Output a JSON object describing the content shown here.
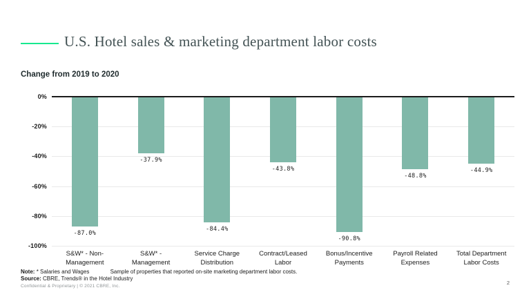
{
  "page": {
    "title": "U.S. Hotel sales & marketing department labor costs",
    "subtitle": "Change from 2019 to 2020",
    "note_label": "Note:",
    "note_text_1": "* Salaries and Wages",
    "note_text_2": "Sample of properties that reported on-site marketing department labor costs.",
    "source_label": "Source:",
    "source_text": "CBRE, Trends® in the Hotel Industry",
    "footer": "Confidential & Proprietary | © 2021 CBRE, Inc.",
    "page_number": "2"
  },
  "colors": {
    "bar": "#80b8a9",
    "accent_line": "#17e88f",
    "title_text": "#435254",
    "grid_line": "#e9e9e9",
    "zero_line": "#1a1a1a"
  },
  "chart_data": {
    "type": "bar",
    "title": "Change from 2019 to 2020",
    "categories": [
      "S&W* - Non-Management",
      "S&W* - Management",
      "Service Charge Distribution",
      "Contract/Leased Labor",
      "Bonus/Incentive Payments",
      "Payroll Related Expenses",
      "Total Department Labor Costs"
    ],
    "values": [
      -87.0,
      -37.9,
      -84.4,
      -43.8,
      -90.8,
      -48.8,
      -44.9
    ],
    "data_labels": [
      "-87.0%",
      "-37.9%",
      "-84.4%",
      "-43.8%",
      "-90.8%",
      "-48.8%",
      "-44.9%"
    ],
    "xlabel": "",
    "ylabel": "",
    "ylim": [
      -100,
      0
    ],
    "yticks": [
      "0%",
      "-20%",
      "-40%",
      "-60%",
      "-80%",
      "-100%"
    ],
    "grid": true,
    "legend": false,
    "bar_orientation": "vertical-negative"
  }
}
